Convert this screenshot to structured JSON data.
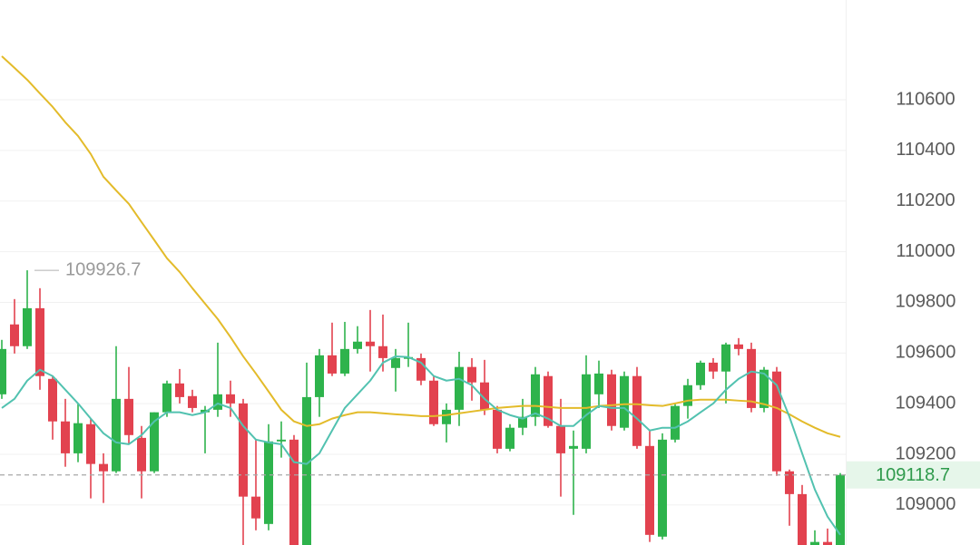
{
  "chart_data": {
    "type": "candlestick",
    "up_color": "#2eb34c",
    "down_color": "#e2424f",
    "ylim": [
      108842,
      110994
    ],
    "yticks": [
      109000,
      109200,
      109400,
      109600,
      109800,
      110000,
      110200,
      110400,
      110600
    ],
    "grid": true,
    "last_price": 109118.7,
    "high_annotation": 109926.7,
    "high_index": 2,
    "open": [
      109437,
      109713,
      109627,
      109777,
      109498,
      109330,
      109204,
      109319,
      109162,
      109133,
      109419,
      109265,
      109133,
      109366,
      109480,
      109430,
      109366,
      109376,
      109437,
      109401,
      109033,
      108925,
      109251,
      109258,
      108830,
      109426,
      109591,
      109519,
      109616,
      109645,
      109627,
      109541,
      109577,
      109580,
      109491,
      109319,
      109376,
      109545,
      109484,
      109376,
      109222,
      109305,
      109348,
      109509,
      109312,
      109222,
      109222,
      109437,
      109516,
      109305,
      109509,
      109233,
      108875,
      109258,
      109391,
      109473,
      109562,
      109527,
      109634,
      109616,
      109383,
      109527,
      109133,
      109043,
      108830,
      108854,
      108830
    ],
    "high": [
      109652,
      109813,
      109926.7,
      109856,
      109509,
      109419,
      109401,
      109341,
      109204,
      109627,
      109545,
      109312,
      109366,
      109491,
      109537,
      109455,
      109391,
      109641,
      109491,
      109419,
      109258,
      109319,
      109330,
      109276,
      109562,
      109616,
      109720,
      109723,
      109706,
      109770,
      109752,
      109616,
      109720,
      109598,
      109509,
      109401,
      109605,
      109580,
      109573,
      109391,
      109319,
      109419,
      109545,
      109527,
      109419,
      109294,
      109591,
      109570,
      109534,
      109527,
      109545,
      109294,
      109283,
      109401,
      109498,
      109570,
      109580,
      109641,
      109659,
      109641,
      109545,
      109545,
      109140,
      109079,
      108900,
      108907,
      109126
    ],
    "low": [
      109419,
      109598,
      109616,
      109455,
      109258,
      109151,
      109169,
      109026,
      109008,
      109126,
      109240,
      109026,
      109126,
      109348,
      109401,
      109366,
      109204,
      109348,
      109348,
      108830,
      108900,
      108900,
      109187,
      108800,
      108800,
      109348,
      109509,
      109509,
      109598,
      109527,
      109527,
      109448,
      109545,
      109473,
      109312,
      109247,
      109312,
      109412,
      109355,
      109204,
      109212,
      109276,
      109312,
      109305,
      109033,
      108961,
      109204,
      109383,
      109294,
      109294,
      109222,
      108854,
      108864,
      109247,
      109341,
      109455,
      109498,
      109401,
      109591,
      109366,
      109366,
      109115,
      108918,
      108800,
      108800,
      108800,
      108800
    ],
    "close": [
      109616,
      109627,
      109777,
      109509,
      109330,
      109204,
      109323,
      109162,
      109133,
      109419,
      109276,
      109133,
      109366,
      109480,
      109426,
      109383,
      109376,
      109437,
      109401,
      109033,
      108947,
      109251,
      109258,
      108830,
      109426,
      109591,
      109519,
      109616,
      109645,
      109627,
      109580,
      109580,
      109584,
      109491,
      109319,
      109376,
      109545,
      109484,
      109376,
      109222,
      109305,
      109348,
      109516,
      109312,
      109204,
      109233,
      109516,
      109519,
      109312,
      109509,
      109233,
      108882,
      109258,
      109391,
      109473,
      109562,
      109527,
      109634,
      109616,
      109383,
      109534,
      109133,
      109043,
      108830,
      108854,
      108830,
      109118.7
    ],
    "moving_averages": [
      {
        "color": "#e3bb2a",
        "values": [
          110772,
          110726,
          110679,
          110625,
          110572,
          110511,
          110457,
          110386,
          110296,
          110242,
          110189,
          110117,
          110046,
          109974,
          109920,
          109856,
          109795,
          109734,
          109663,
          109587,
          109519,
          109448,
          109376,
          109330,
          109312,
          109319,
          109341,
          109355,
          109366,
          109366,
          109362,
          109358,
          109355,
          109351,
          109351,
          109355,
          109362,
          109369,
          109376,
          109383,
          109387,
          109391,
          109391,
          109387,
          109383,
          109383,
          109383,
          109391,
          109394,
          109398,
          109398,
          109394,
          109391,
          109401,
          109412,
          109416,
          109416,
          109416,
          109412,
          109409,
          109398,
          109383,
          109358,
          109330,
          109305,
          109283,
          109269
        ]
      },
      {
        "color": "#52c2b0",
        "values": [
          109383,
          109419,
          109491,
          109534,
          109509,
          109455,
          109401,
          109341,
          109283,
          109247,
          109240,
          109276,
          109330,
          109366,
          109366,
          109355,
          109366,
          109401,
          109383,
          109312,
          109258,
          109247,
          109240,
          109169,
          109162,
          109204,
          109294,
          109383,
          109437,
          109491,
          109562,
          109587,
          109584,
          109562,
          109509,
          109491,
          109498,
          109473,
          109419,
          109376,
          109355,
          109341,
          109362,
          109341,
          109312,
          109312,
          109355,
          109391,
          109383,
          109383,
          109341,
          109294,
          109305,
          109305,
          109330,
          109366,
          109401,
          109455,
          109498,
          109527,
          109519,
          109473,
          109348,
          109204,
          109061,
          108954,
          108882
        ]
      }
    ]
  }
}
